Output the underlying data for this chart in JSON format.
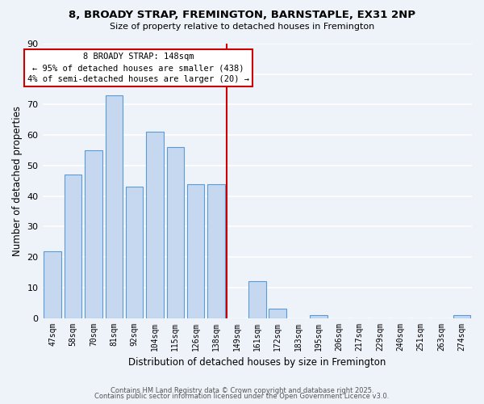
{
  "title": "8, BROADY STRAP, FREMINGTON, BARNSTAPLE, EX31 2NP",
  "subtitle": "Size of property relative to detached houses in Fremington",
  "xlabel": "Distribution of detached houses by size in Fremington",
  "ylabel": "Number of detached properties",
  "categories": [
    "47sqm",
    "58sqm",
    "70sqm",
    "81sqm",
    "92sqm",
    "104sqm",
    "115sqm",
    "126sqm",
    "138sqm",
    "149sqm",
    "161sqm",
    "172sqm",
    "183sqm",
    "195sqm",
    "206sqm",
    "217sqm",
    "229sqm",
    "240sqm",
    "251sqm",
    "263sqm",
    "274sqm"
  ],
  "values": [
    22,
    47,
    55,
    73,
    43,
    61,
    56,
    44,
    44,
    0,
    12,
    3,
    0,
    1,
    0,
    0,
    0,
    0,
    0,
    0,
    1
  ],
  "bar_color": "#c5d8f0",
  "bar_edge_color": "#5b9bd5",
  "ylim": [
    0,
    90
  ],
  "yticks": [
    0,
    10,
    20,
    30,
    40,
    50,
    60,
    70,
    80,
    90
  ],
  "vline_color": "#cc0000",
  "vline_position": 8.5,
  "annotation_title": "8 BROADY STRAP: 148sqm",
  "annotation_line1": "← 95% of detached houses are smaller (438)",
  "annotation_line2": "4% of semi-detached houses are larger (20) →",
  "annotation_box_color": "#ffffff",
  "annotation_box_edge": "#cc0000",
  "background_color": "#eef2f9",
  "grid_color": "#ffffff",
  "footer1": "Contains HM Land Registry data © Crown copyright and database right 2025.",
  "footer2": "Contains public sector information licensed under the Open Government Licence v3.0."
}
